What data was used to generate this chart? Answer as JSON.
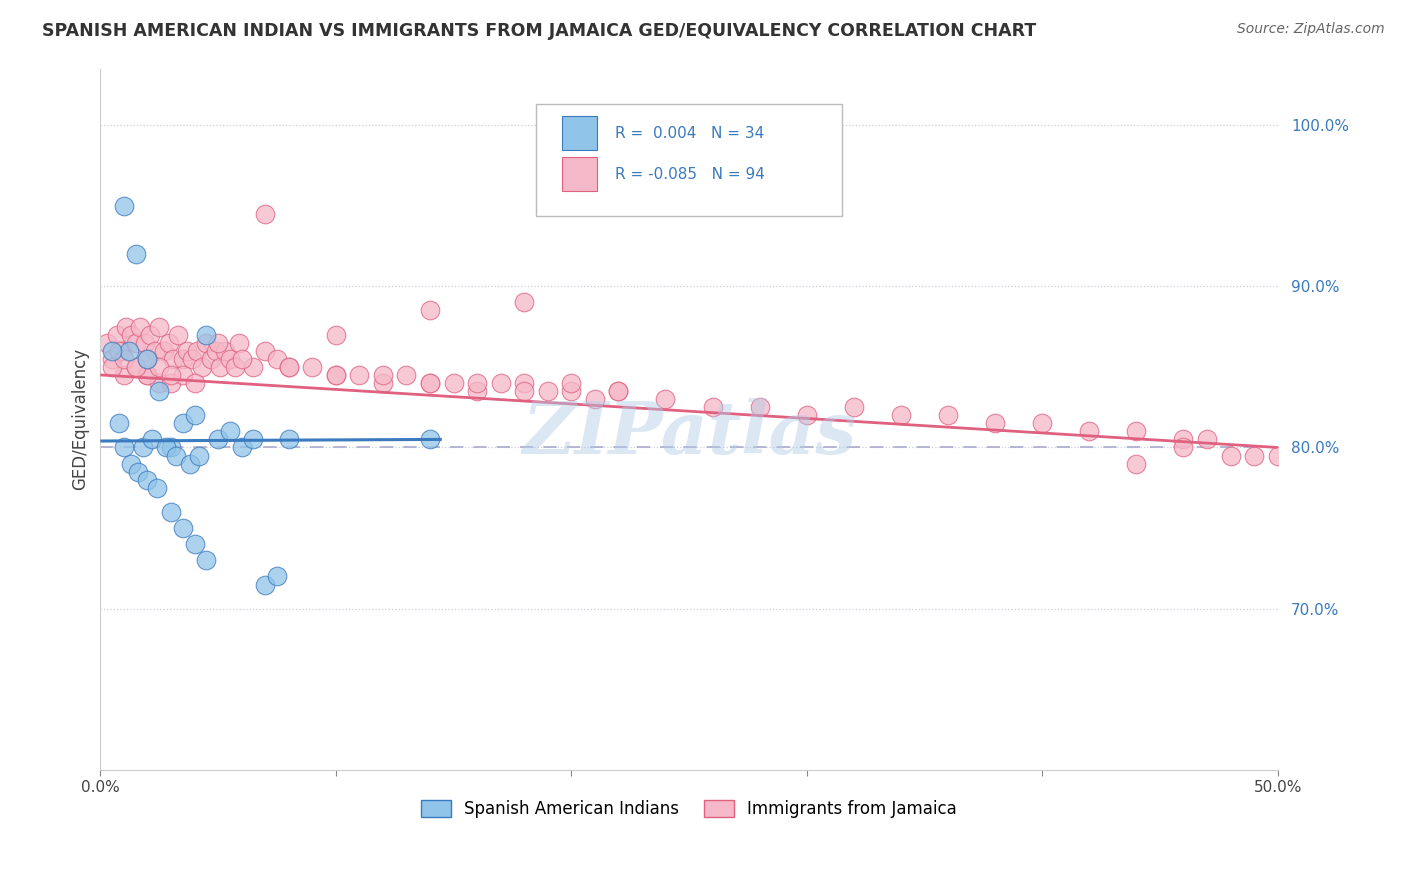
{
  "title": "SPANISH AMERICAN INDIAN VS IMMIGRANTS FROM JAMAICA GED/EQUIVALENCY CORRELATION CHART",
  "source": "Source: ZipAtlas.com",
  "ylabel": "GED/Equivalency",
  "xlim": [
    0.0,
    50.0
  ],
  "ylim": [
    60.0,
    103.5
  ],
  "yticks": [
    70.0,
    80.0,
    90.0,
    100.0
  ],
  "ytick_labels": [
    "70.0%",
    "80.0%",
    "90.0%",
    "100.0%"
  ],
  "xticks": [
    0.0,
    10.0,
    20.0,
    30.0,
    40.0,
    50.0
  ],
  "xtick_labels": [
    "0.0%",
    "",
    "",
    "",
    "",
    "50.0%"
  ],
  "watermark": "ZIPatlas",
  "legend_r1": "R =  0.004",
  "legend_n1": "N = 34",
  "legend_r2": "R = -0.085",
  "legend_n2": "N = 94",
  "color_blue": "#90c4e8",
  "color_pink": "#f5b8c8",
  "color_blue_line": "#3a7abf",
  "color_pink_line": "#e06080",
  "color_dashed": "#aaaacc",
  "background": "#ffffff",
  "blue_x": [
    1.0,
    1.5,
    2.0,
    2.5,
    3.0,
    3.5,
    4.0,
    4.5,
    5.0,
    5.5,
    6.0,
    6.5,
    7.0,
    7.5,
    8.0,
    1.2,
    1.8,
    2.2,
    2.8,
    3.2,
    3.8,
    4.2,
    0.5,
    0.8,
    1.0,
    1.3,
    1.6,
    2.0,
    2.4,
    3.0,
    3.5,
    4.0,
    4.5,
    14.0
  ],
  "blue_y": [
    95.0,
    92.0,
    85.5,
    83.5,
    80.0,
    81.5,
    82.0,
    87.0,
    80.5,
    81.0,
    80.0,
    80.5,
    71.5,
    72.0,
    80.5,
    86.0,
    80.0,
    80.5,
    80.0,
    79.5,
    79.0,
    79.5,
    86.0,
    81.5,
    80.0,
    79.0,
    78.5,
    78.0,
    77.5,
    76.0,
    75.0,
    74.0,
    73.0,
    80.5
  ],
  "pink_x": [
    0.3,
    0.5,
    0.7,
    0.9,
    1.1,
    1.3,
    1.5,
    1.7,
    1.9,
    2.1,
    2.3,
    2.5,
    2.7,
    2.9,
    3.1,
    3.3,
    3.5,
    3.7,
    3.9,
    4.1,
    4.3,
    4.5,
    4.7,
    4.9,
    5.1,
    5.3,
    5.5,
    5.7,
    5.9,
    6.5,
    7.0,
    7.5,
    8.0,
    9.0,
    10.0,
    11.0,
    12.0,
    13.0,
    14.0,
    15.0,
    16.0,
    17.0,
    18.0,
    19.0,
    20.0,
    21.0,
    22.0,
    24.0,
    26.0,
    28.0,
    30.0,
    32.0,
    34.0,
    36.0,
    38.0,
    40.0,
    42.0,
    44.0,
    46.0,
    2.0,
    2.5,
    3.0,
    3.5,
    4.0,
    1.0,
    1.5,
    2.0,
    2.5,
    3.0,
    0.5,
    0.8,
    1.0,
    1.5,
    2.0,
    6.0,
    8.0,
    10.0,
    12.0,
    14.0,
    16.0,
    18.0,
    20.0,
    22.0,
    10.0,
    14.0,
    18.0,
    5.0,
    7.0,
    46.0,
    47.0,
    48.0,
    49.0,
    50.0,
    44.0
  ],
  "pink_y": [
    86.5,
    85.5,
    87.0,
    86.0,
    87.5,
    87.0,
    86.5,
    87.5,
    86.5,
    87.0,
    86.0,
    87.5,
    86.0,
    86.5,
    85.5,
    87.0,
    85.5,
    86.0,
    85.5,
    86.0,
    85.0,
    86.5,
    85.5,
    86.0,
    85.0,
    86.0,
    85.5,
    85.0,
    86.5,
    85.0,
    86.0,
    85.5,
    85.0,
    85.0,
    84.5,
    84.5,
    84.0,
    84.5,
    84.0,
    84.0,
    83.5,
    84.0,
    84.0,
    83.5,
    83.5,
    83.0,
    83.5,
    83.0,
    82.5,
    82.5,
    82.0,
    82.5,
    82.0,
    82.0,
    81.5,
    81.5,
    81.0,
    81.0,
    80.5,
    84.5,
    84.0,
    84.0,
    84.5,
    84.0,
    84.5,
    85.0,
    84.5,
    85.0,
    84.5,
    85.0,
    86.0,
    85.5,
    85.0,
    85.5,
    85.5,
    85.0,
    84.5,
    84.5,
    84.0,
    84.0,
    83.5,
    84.0,
    83.5,
    87.0,
    88.5,
    89.0,
    86.5,
    94.5,
    80.0,
    80.5,
    79.5,
    79.5,
    79.5,
    79.0
  ],
  "blue_trend_x": [
    0.0,
    14.5
  ],
  "blue_trend_y": [
    80.4,
    80.5
  ],
  "pink_trend_x": [
    0.0,
    50.0
  ],
  "pink_trend_y": [
    84.5,
    80.0
  ]
}
